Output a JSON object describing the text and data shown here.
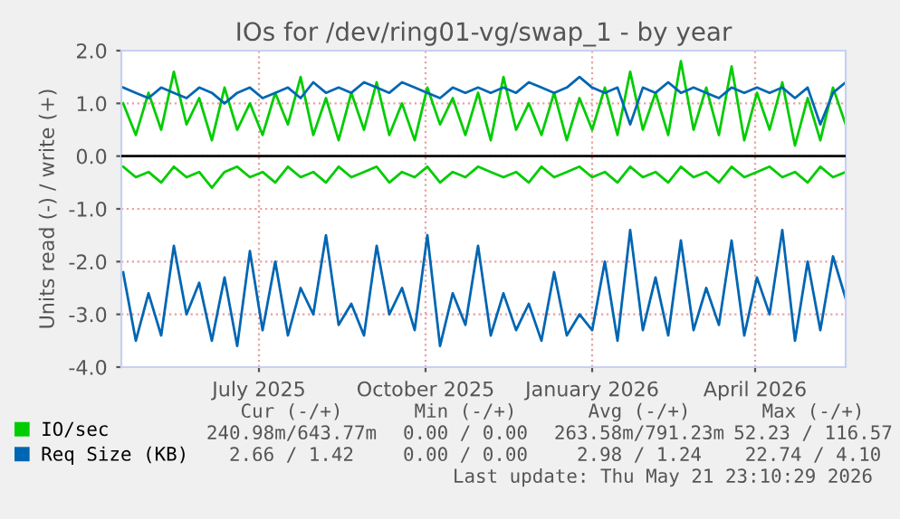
{
  "chart_data": {
    "type": "line",
    "title": "IOs for /dev/ring01-vg/swap_1 - by year",
    "ylabel": "Units read (-) / write (+)",
    "x": [
      "2025-04-17",
      "2025-04-24",
      "2025-05-01",
      "2025-05-08",
      "2025-05-15",
      "2025-05-22",
      "2025-05-29",
      "2025-06-05",
      "2025-06-12",
      "2025-06-19",
      "2025-06-26",
      "2025-07-03",
      "2025-07-10",
      "2025-07-17",
      "2025-07-24",
      "2025-07-31",
      "2025-08-07",
      "2025-08-14",
      "2025-08-21",
      "2025-08-28",
      "2025-09-04",
      "2025-09-11",
      "2025-09-18",
      "2025-09-25",
      "2025-10-02",
      "2025-10-09",
      "2025-10-16",
      "2025-10-23",
      "2025-10-30",
      "2025-11-06",
      "2025-11-13",
      "2025-11-20",
      "2025-11-27",
      "2025-12-04",
      "2025-12-11",
      "2025-12-18",
      "2025-12-25",
      "2026-01-01",
      "2026-01-08",
      "2026-01-15",
      "2026-01-22",
      "2026-01-29",
      "2026-02-05",
      "2026-02-12",
      "2026-02-19",
      "2026-02-26",
      "2026-03-05",
      "2026-03-12",
      "2026-03-19",
      "2026-03-26",
      "2026-04-02",
      "2026-04-09",
      "2026-04-16",
      "2026-04-23",
      "2026-04-30",
      "2026-05-07",
      "2026-05-14",
      "2026-05-21"
    ],
    "series": [
      {
        "color": "#00cc00",
        "values": [
          -0.2,
          -0.4,
          -0.3,
          -0.5,
          -0.2,
          -0.4,
          -0.3,
          -0.6,
          -0.3,
          -0.2,
          -0.4,
          -0.3,
          -0.5,
          -0.2,
          -0.4,
          -0.3,
          -0.5,
          -0.2,
          -0.4,
          -0.3,
          -0.2,
          -0.5,
          -0.3,
          -0.4,
          -0.2,
          -0.5,
          -0.3,
          -0.4,
          -0.2,
          -0.3,
          -0.4,
          -0.3,
          -0.5,
          -0.2,
          -0.4,
          -0.3,
          -0.2,
          -0.4,
          -0.3,
          -0.5,
          -0.2,
          -0.4,
          -0.3,
          -0.5,
          -0.2,
          -0.4,
          -0.3,
          -0.5,
          -0.2,
          -0.4,
          -0.3,
          -0.2,
          -0.4,
          -0.3,
          -0.5,
          -0.2,
          -0.4,
          -0.3
        ]
      },
      {
        "name": "IO/sec",
        "color": "#00cc00",
        "values": [
          1.0,
          0.4,
          1.2,
          0.5,
          1.6,
          0.6,
          1.1,
          0.3,
          1.3,
          0.5,
          1.0,
          0.4,
          1.2,
          0.6,
          1.5,
          0.4,
          1.1,
          0.3,
          1.2,
          0.5,
          1.4,
          0.4,
          1.0,
          0.3,
          1.3,
          0.6,
          1.1,
          0.4,
          1.2,
          0.3,
          1.5,
          0.5,
          1.0,
          0.4,
          1.2,
          0.3,
          1.1,
          0.5,
          1.3,
          0.4,
          1.6,
          0.5,
          1.2,
          0.4,
          1.8,
          0.5,
          1.3,
          0.4,
          1.7,
          0.3,
          1.2,
          0.5,
          1.4,
          0.2,
          1.1,
          0.3,
          1.3,
          0.6
        ]
      },
      {
        "color": "#0066b3",
        "values": [
          -2.2,
          -3.5,
          -2.6,
          -3.4,
          -1.7,
          -3.0,
          -2.4,
          -3.5,
          -2.3,
          -3.6,
          -1.8,
          -3.3,
          -2.0,
          -3.4,
          -2.5,
          -3.0,
          -1.5,
          -3.2,
          -2.8,
          -3.4,
          -1.7,
          -3.0,
          -2.5,
          -3.3,
          -1.5,
          -3.6,
          -2.6,
          -3.2,
          -1.7,
          -3.4,
          -2.6,
          -3.3,
          -2.8,
          -3.5,
          -2.2,
          -3.4,
          -3.0,
          -3.3,
          -2.0,
          -3.5,
          -1.4,
          -3.3,
          -2.3,
          -3.4,
          -1.6,
          -3.3,
          -2.5,
          -3.2,
          -1.6,
          -3.4,
          -2.3,
          -3.0,
          -1.4,
          -3.5,
          -2.0,
          -3.3,
          -1.9,
          -2.7
        ]
      },
      {
        "name": "Req Size (KB)",
        "color": "#0066b3",
        "values": [
          1.3,
          1.2,
          1.1,
          1.3,
          1.2,
          1.1,
          1.3,
          1.2,
          1.0,
          1.2,
          1.3,
          1.1,
          1.2,
          1.3,
          1.1,
          1.4,
          1.2,
          1.3,
          1.2,
          1.4,
          1.3,
          1.2,
          1.4,
          1.3,
          1.2,
          1.1,
          1.3,
          1.2,
          1.3,
          1.2,
          1.3,
          1.2,
          1.4,
          1.3,
          1.2,
          1.3,
          1.5,
          1.3,
          1.2,
          1.3,
          0.6,
          1.3,
          1.2,
          1.4,
          1.2,
          1.3,
          1.2,
          1.1,
          1.3,
          1.2,
          1.3,
          1.2,
          1.3,
          1.1,
          1.3,
          0.6,
          1.2,
          1.4
        ]
      }
    ],
    "xlim": [
      "2025-04-16",
      "2026-05-21"
    ],
    "xticks": [
      {
        "value": "2025-07-01",
        "label": "July 2025"
      },
      {
        "value": "2025-10-01",
        "label": "October 2025"
      },
      {
        "value": "2026-01-01",
        "label": "January 2026"
      },
      {
        "value": "2026-04-01",
        "label": "April 2026"
      }
    ],
    "ylim": [
      -4,
      2
    ],
    "yticks": [
      {
        "value": 2,
        "label": "2.0"
      },
      {
        "value": 1,
        "label": "1.0"
      },
      {
        "value": 0,
        "label": "0.0"
      },
      {
        "value": -1,
        "label": "-1.0"
      },
      {
        "value": -2,
        "label": "-2.0"
      },
      {
        "value": -3,
        "label": "-3.0"
      },
      {
        "value": -4,
        "label": "-4.0"
      }
    ],
    "ref_lines": [
      {
        "axis": "y",
        "value": 0,
        "color": "#000000"
      }
    ],
    "grid": true,
    "legend": "bottom left",
    "annotations": [
      "Cur (-/+)",
      "Min (-/+)",
      "Avg (-/+)",
      "Max (-/+)",
      "240.98m/643.77m",
      "0.00 / 0.00",
      "263.58m/791.23m",
      "52.23 / 116.57",
      "2.66 / 1.42",
      "0.00 / 0.00",
      "2.98 / 1.24",
      "22.74 / 4.10",
      "Last update: Thu May 21 23:10:29 2026"
    ]
  }
}
